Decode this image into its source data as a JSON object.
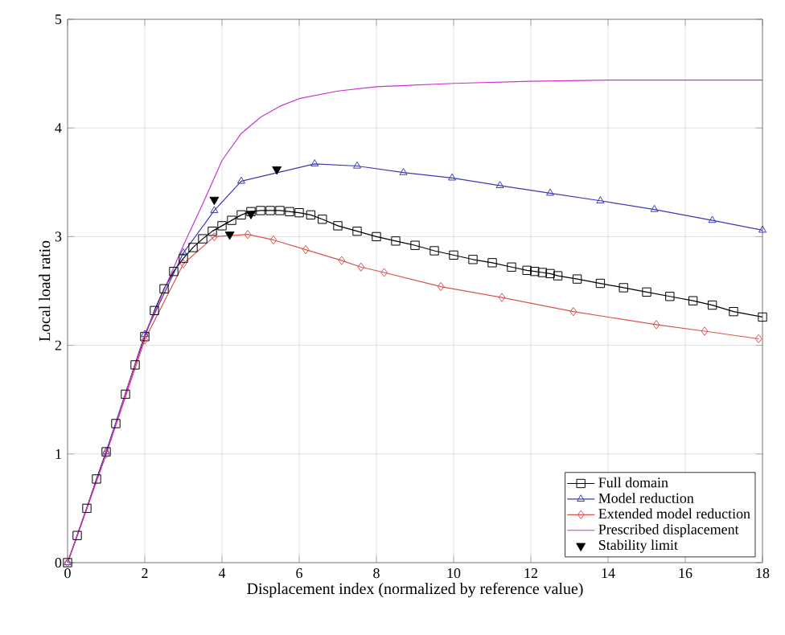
{
  "chart_data": {
    "type": "line",
    "xlabel": "Displacement index (normalized by reference value)",
    "ylabel": "Local load ratio",
    "xlim": [
      0,
      18
    ],
    "ylim": [
      0,
      5
    ],
    "xticks": [
      0,
      2,
      4,
      6,
      8,
      10,
      12,
      14,
      16,
      18
    ],
    "yticks": [
      0,
      1,
      2,
      3,
      4,
      5
    ],
    "grid": true,
    "legend": "bottom right",
    "line_style": "solid",
    "series": [
      {
        "name": "Full domain",
        "color": "#000000",
        "marker": "square",
        "x": [
          0,
          0.25,
          0.5,
          0.75,
          1,
          1.25,
          1.5,
          1.75,
          2,
          2.25,
          2.5,
          2.75,
          3,
          3.25,
          3.5,
          3.75,
          4,
          4.25,
          4.5,
          4.75,
          5,
          5.25,
          5.5,
          5.75,
          6,
          6.3,
          6.6,
          7,
          7.5,
          8,
          8.5,
          9,
          9.5,
          10,
          10.5,
          11,
          11.5,
          11.9,
          12.1,
          12.3,
          12.5,
          12.7,
          13.2,
          13.8,
          14.4,
          15,
          15.6,
          16.2,
          16.7,
          17.25,
          18
        ],
        "values": [
          0,
          0.25,
          0.5,
          0.77,
          1.02,
          1.28,
          1.55,
          1.82,
          2.08,
          2.32,
          2.52,
          2.68,
          2.8,
          2.9,
          2.98,
          3.05,
          3.1,
          3.15,
          3.2,
          3.23,
          3.24,
          3.24,
          3.24,
          3.23,
          3.22,
          3.2,
          3.16,
          3.1,
          3.05,
          3.0,
          2.96,
          2.92,
          2.87,
          2.83,
          2.79,
          2.76,
          2.72,
          2.69,
          2.68,
          2.67,
          2.66,
          2.64,
          2.61,
          2.57,
          2.53,
          2.49,
          2.45,
          2.41,
          2.37,
          2.31,
          2.26
        ]
      },
      {
        "name": "Model reduction",
        "color": "#3a3ab0",
        "marker": "triangle",
        "x": [
          0,
          1,
          2,
          3,
          3.8,
          4.5,
          6.4,
          7.5,
          8.7,
          9.96,
          11.2,
          12.5,
          13.8,
          15.2,
          16.7,
          18
        ],
        "values": [
          0,
          1.02,
          2.1,
          2.85,
          3.24,
          3.51,
          3.67,
          3.65,
          3.59,
          3.54,
          3.47,
          3.4,
          3.33,
          3.25,
          3.15,
          3.06
        ]
      },
      {
        "name": "Extended model reduction",
        "color": "#d9534f",
        "marker": "diamond",
        "x": [
          0,
          1,
          2,
          3,
          3.8,
          4.67,
          5.33,
          6.17,
          7.1,
          7.6,
          8.2,
          9.67,
          11.25,
          13.1,
          15.25,
          16.5,
          17.9
        ],
        "values": [
          0,
          1.0,
          2.05,
          2.75,
          3.0,
          3.02,
          2.97,
          2.88,
          2.78,
          2.72,
          2.67,
          2.54,
          2.44,
          2.31,
          2.19,
          2.13,
          2.06
        ]
      },
      {
        "name": "Prescribed displacement",
        "color": "#cc33cc",
        "marker": "none",
        "x": [
          0,
          1,
          2,
          3,
          3.5,
          4,
          4.5,
          5,
          5.5,
          6,
          7,
          8,
          10,
          12,
          14,
          18
        ],
        "values": [
          0,
          1.0,
          2.1,
          2.92,
          3.3,
          3.7,
          3.95,
          4.1,
          4.2,
          4.27,
          4.34,
          4.38,
          4.41,
          4.43,
          4.44,
          4.44
        ]
      },
      {
        "name": "Stability limit",
        "type": "scatter",
        "color": "#000000",
        "marker": "triangle",
        "x": [
          3.8,
          5.42,
          4.75,
          4.2
        ],
        "values": [
          3.34,
          3.62,
          3.21,
          3.02
        ]
      }
    ]
  }
}
